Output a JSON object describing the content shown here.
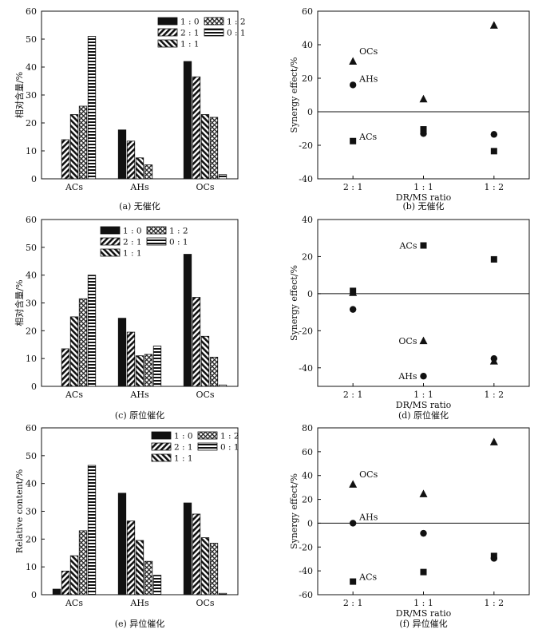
{
  "patterns": {
    "1 : 0": "solid",
    "2 : 1": "diag-right",
    "1 : 1": "diag-left",
    "1 : 2": "crosshatch",
    "0 : 1": "horizontal"
  },
  "marker_shapes": {
    "ACs": "square",
    "AHs": "circle",
    "OCs": "triangle"
  },
  "chart_data": [
    {
      "type": "bar",
      "caption": "(a) 无催化",
      "ylabel": "相对含量/%",
      "ylim": [
        0,
        60
      ],
      "yticks": [
        0,
        10,
        20,
        30,
        40,
        50,
        60
      ],
      "categories": [
        "ACs",
        "AHs",
        "OCs"
      ],
      "legend": {
        "rows": [
          [
            "1 : 0",
            "1 : 2"
          ],
          [
            "2 : 1",
            "0 : 1"
          ],
          [
            "1 : 1"
          ]
        ],
        "position": "top-right"
      },
      "series": [
        {
          "name": "1 : 0",
          "values": [
            null,
            17.5,
            42
          ]
        },
        {
          "name": "2 : 1",
          "values": [
            14,
            13.5,
            36.5
          ]
        },
        {
          "name": "1 : 1",
          "values": [
            23,
            7.5,
            23
          ]
        },
        {
          "name": "1 : 2",
          "values": [
            26,
            5,
            22
          ]
        },
        {
          "name": "0 : 1",
          "values": [
            51,
            null,
            1.5
          ]
        }
      ]
    },
    {
      "type": "scatter",
      "caption": "(b) 无催化",
      "xlabel": "DR/MS ratio",
      "ylabel": "Synergy effect/%",
      "categories": [
        "2 : 1",
        "1 : 1",
        "1 : 2"
      ],
      "ylim": [
        -40,
        60
      ],
      "yticks": [
        -40,
        -20,
        0,
        20,
        40,
        60
      ],
      "zero_line": true,
      "series": [
        {
          "name": "ACs",
          "values": [
            -17.5,
            -10.5,
            -23.5
          ]
        },
        {
          "name": "AHs",
          "values": [
            16,
            -13,
            -13.5
          ]
        },
        {
          "name": "OCs",
          "values": [
            30,
            7.5,
            51.5
          ]
        }
      ],
      "labels": [
        {
          "text": "OCs",
          "series": "OCs",
          "index": 0
        },
        {
          "text": "AHs",
          "series": "AHs",
          "index": 0
        },
        {
          "text": "ACs",
          "series": "ACs",
          "index": 0
        }
      ]
    },
    {
      "type": "bar",
      "caption": "(c) 原位催化",
      "ylabel": "相对含量/%",
      "ylim": [
        0,
        60
      ],
      "yticks": [
        0,
        10,
        20,
        30,
        40,
        50,
        60
      ],
      "categories": [
        "ACs",
        "AHs",
        "OCs"
      ],
      "legend": {
        "rows": [
          [
            "1 : 0",
            "1 : 2"
          ],
          [
            "2 : 1",
            "0 : 1"
          ],
          [
            "1 : 1"
          ]
        ],
        "position": "top-center"
      },
      "series": [
        {
          "name": "1 : 0",
          "values": [
            null,
            24.5,
            47.5
          ]
        },
        {
          "name": "2 : 1",
          "values": [
            13.5,
            19.5,
            32
          ]
        },
        {
          "name": "1 : 1",
          "values": [
            25,
            11,
            18
          ]
        },
        {
          "name": "1 : 2",
          "values": [
            31.5,
            11.5,
            10.5
          ]
        },
        {
          "name": "0 : 1",
          "values": [
            40,
            14.5,
            0.5
          ]
        }
      ]
    },
    {
      "type": "scatter",
      "caption": "(d) 原位催化",
      "xlabel": "DR/MS ratio",
      "ylabel": "Synergy effect/%",
      "categories": [
        "2 : 1",
        "1 : 1",
        "1 : 2"
      ],
      "ylim": [
        -50,
        40
      ],
      "yticks": [
        -40,
        -20,
        0,
        20,
        40
      ],
      "zero_line": true,
      "series": [
        {
          "name": "ACs",
          "values": [
            1.5,
            26,
            18.5
          ]
        },
        {
          "name": "AHs",
          "values": [
            -8.5,
            -44.5,
            -35
          ]
        },
        {
          "name": "OCs",
          "values": [
            0.5,
            -25.5,
            -36.5
          ]
        }
      ],
      "labels": [
        {
          "text": "ACs",
          "series": "ACs",
          "index": 1
        },
        {
          "text": "OCs",
          "series": "OCs",
          "index": 1
        },
        {
          "text": "AHs",
          "series": "AHs",
          "index": 1
        }
      ]
    },
    {
      "type": "bar",
      "caption": "(e) 异位催化",
      "ylabel": "Relative content/%",
      "ylim": [
        0,
        60
      ],
      "yticks": [
        0,
        10,
        20,
        30,
        40,
        50,
        60
      ],
      "categories": [
        "ACs",
        "AHs",
        "OCs"
      ],
      "legend": {
        "rows": [
          [
            "1 : 0",
            "1 : 2"
          ],
          [
            "2 : 1",
            "0 : 1"
          ],
          [
            "1 : 1"
          ]
        ],
        "position": "top-right"
      },
      "series": [
        {
          "name": "1 : 0",
          "values": [
            2,
            36.5,
            33
          ]
        },
        {
          "name": "2 : 1",
          "values": [
            8.5,
            26.5,
            29
          ]
        },
        {
          "name": "1 : 1",
          "values": [
            14,
            19.5,
            20.5
          ]
        },
        {
          "name": "1 : 2",
          "values": [
            23,
            12,
            18.5
          ]
        },
        {
          "name": "0 : 1",
          "values": [
            46.5,
            7,
            0.5
          ]
        }
      ]
    },
    {
      "type": "scatter",
      "caption": "(f) 异位催化",
      "xlabel": "DR/MS ratio",
      "ylabel": "Synergy effect/%",
      "categories": [
        "2 : 1",
        "1 : 1",
        "1 : 2"
      ],
      "ylim": [
        -60,
        80
      ],
      "yticks": [
        -60,
        -40,
        -20,
        0,
        20,
        40,
        60,
        80
      ],
      "zero_line": true,
      "series": [
        {
          "name": "ACs",
          "values": [
            -49,
            -41,
            -27.5
          ]
        },
        {
          "name": "AHs",
          "values": [
            0,
            -8.5,
            -29.5
          ]
        },
        {
          "name": "OCs",
          "values": [
            32.5,
            24.5,
            68
          ]
        }
      ],
      "labels": [
        {
          "text": "OCs",
          "series": "OCs",
          "index": 0
        },
        {
          "text": "AHs",
          "series": "AHs",
          "index": 0
        },
        {
          "text": "ACs",
          "series": "ACs",
          "index": 0
        }
      ]
    }
  ]
}
